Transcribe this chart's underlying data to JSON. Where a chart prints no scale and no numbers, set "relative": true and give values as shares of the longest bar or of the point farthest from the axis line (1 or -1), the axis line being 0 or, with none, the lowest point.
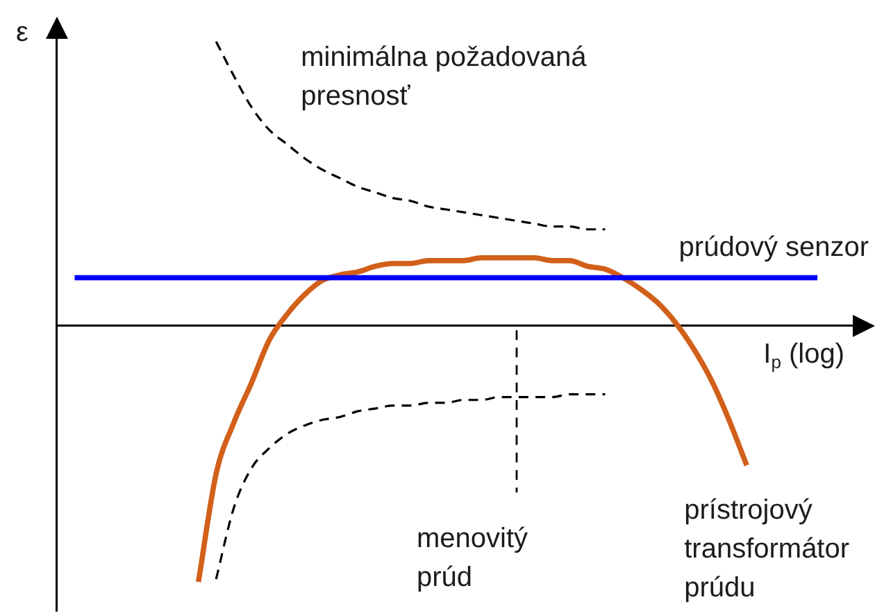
{
  "chart_data": {
    "type": "line",
    "relative": true,
    "xlabel": "I$_{p}$ (log)",
    "ylabel": "ε",
    "categories": [
      null,
      null,
      null,
      null,
      null,
      null,
      null,
      null,
      null,
      null,
      null,
      null,
      null,
      null,
      null,
      null,
      null,
      null,
      null,
      null,
      null,
      null,
      null,
      null,
      null,
      null,
      null,
      null,
      null,
      null,
      null,
      null,
      null,
      null,
      null,
      null,
      null,
      null,
      null,
      null,
      null,
      null,
      null,
      null,
      null,
      null
    ],
    "series": [
      {
        "name": "minimálna požadovaná presnosť",
        "color": "#000000",
        "line_style": "dashed",
        "values": [
          null,
          null,
          null,
          null,
          null,
          null,
          null,
          null,
          null,
          1,
          0.88,
          0.77,
          0.69,
          0.64,
          0.59,
          0.55,
          0.52,
          0.49,
          0.47,
          0.45,
          0.44,
          0.42,
          0.41,
          0.4,
          0.39,
          0.38,
          0.37,
          0.36,
          0.35,
          0.35,
          0.34,
          0.34,
          null,
          null,
          null,
          null,
          null,
          null,
          null,
          null,
          null,
          null,
          null,
          null,
          null,
          null
        ]
      },
      {
        "color": "#000000",
        "line_style": "dashed",
        "values": [
          null,
          null,
          null,
          null,
          null,
          null,
          null,
          null,
          null,
          -0.89,
          -0.64,
          -0.5,
          -0.43,
          -0.38,
          -0.35,
          -0.33,
          -0.32,
          -0.3,
          -0.29,
          -0.28,
          -0.28,
          -0.27,
          -0.27,
          -0.26,
          -0.26,
          -0.25,
          -0.25,
          -0.25,
          -0.25,
          -0.24,
          -0.24,
          -0.24,
          null,
          null,
          null,
          null,
          null,
          null,
          null,
          null,
          null,
          null,
          null,
          null,
          null,
          null
        ]
      },
      {
        "name": "prúdový senzor",
        "color": "#0000ff",
        "values": [
          null,
          0.17,
          0.17,
          0.17,
          0.17,
          0.17,
          0.17,
          0.17,
          0.17,
          0.17,
          0.17,
          0.17,
          0.17,
          0.17,
          0.17,
          0.17,
          0.17,
          0.17,
          0.17,
          0.17,
          0.17,
          0.17,
          0.17,
          0.17,
          0.17,
          0.17,
          0.17,
          0.17,
          0.17,
          0.17,
          0.17,
          0.17,
          0.17,
          0.17,
          0.17,
          0.17,
          0.17,
          0.17,
          0.17,
          0.17,
          0.17,
          0.17,
          0.17,
          0.17,
          null,
          null
        ]
      },
      {
        "name": "prístrojový transformátor prúdu",
        "color": "#d2601a",
        "values": [
          null,
          null,
          null,
          null,
          null,
          null,
          null,
          null,
          -0.9,
          -0.52,
          -0.34,
          -0.2,
          -0.05,
          0.04,
          0.11,
          0.16,
          0.18,
          0.19,
          0.21,
          0.22,
          0.22,
          0.23,
          0.23,
          0.23,
          0.24,
          0.24,
          0.24,
          0.24,
          0.23,
          0.23,
          0.21,
          0.2,
          0.17,
          0.13,
          0.08,
          0.01,
          -0.08,
          -0.19,
          -0.33,
          -0.49,
          null,
          null,
          null,
          null,
          null,
          null
        ]
      }
    ],
    "annotations": [
      "menovitý prúd"
    ]
  }
}
